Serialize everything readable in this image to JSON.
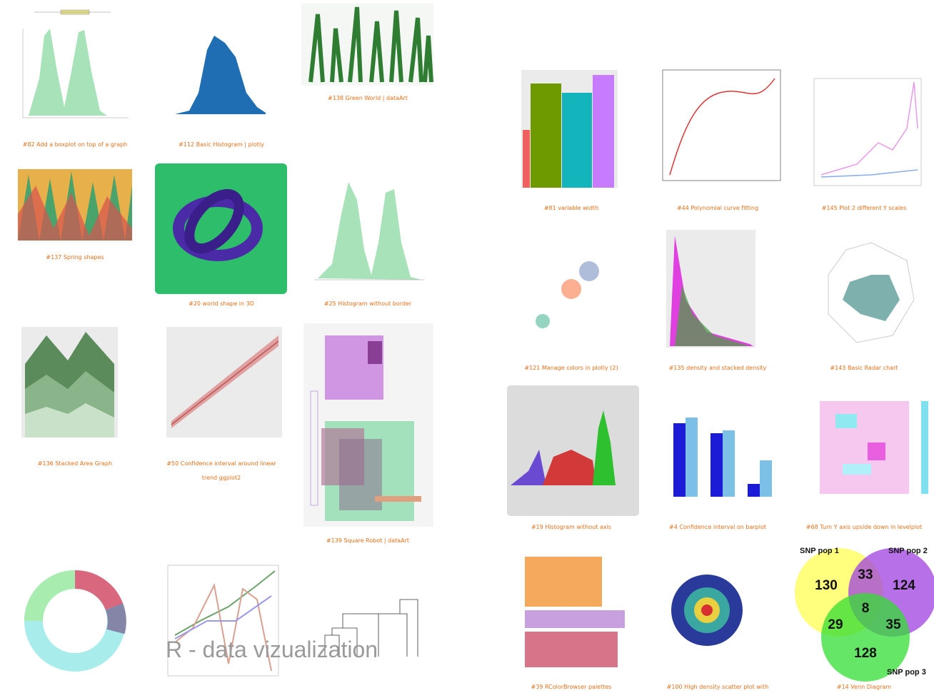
{
  "title": "R - data vizualization",
  "captions": [
    [
      "#82 Add a boxplot on top of a graph"
    ],
    [
      "#112 Basic Histogram | plotly"
    ],
    [
      "#138 Green World | dataArt"
    ],
    [
      "#137 Spring shapes"
    ],
    [
      "#20 world shape in 3D"
    ],
    [
      "#25 Histogram without border"
    ],
    [
      "#136 Stacked Area Graph"
    ],
    [
      "#50 Confidence interval around linear",
      "trend ggplot2"
    ],
    [
      "#139 Square Robot | dataArt"
    ],
    [
      "#81 variable width"
    ],
    [
      "#44 Polynomial curve fitting"
    ],
    [
      "#145 Plot 2 different Y scales"
    ],
    [
      "#121 Manage colors in plotly (2)"
    ],
    [
      "#135 density and stacked density"
    ],
    [
      "#143 Basic Radar chart"
    ],
    [
      "#19 Histogram without axis"
    ],
    [
      "#4 Confidence interval on barplot"
    ],
    [
      "#68 Turn Y axis upside down in levelplot"
    ],
    [
      "#39 RColorBrowser palettes"
    ],
    [
      "#100 High density scatter plot with"
    ],
    [
      "#14 Venn Diagram"
    ]
  ],
  "venn": {
    "sets": [
      "SNP pop 1",
      "SNP pop 2",
      "SNP pop 3"
    ],
    "regions": [
      130,
      33,
      124,
      8,
      29,
      35,
      128
    ]
  }
}
